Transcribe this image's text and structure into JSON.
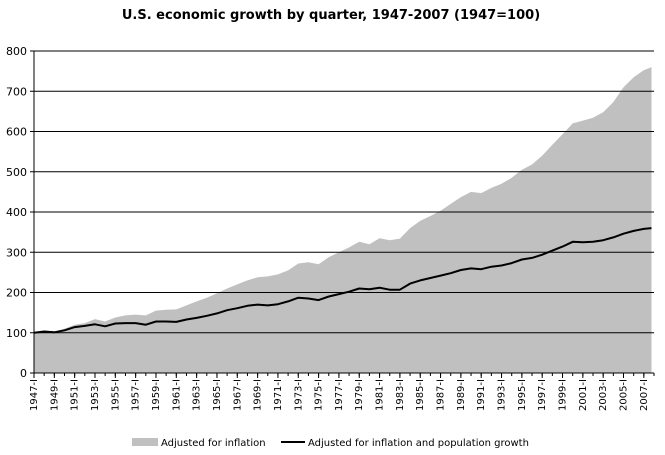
{
  "chart_data": {
    "type": "area",
    "title": "U.S. economic growth by quarter, 1947-2007 (1947=100)",
    "xlabel": "",
    "ylabel": "",
    "xlim": [
      1947,
      2008
    ],
    "ylim": [
      0,
      800
    ],
    "yticks": [
      0,
      100,
      200,
      300,
      400,
      500,
      600,
      700,
      800
    ],
    "xtick_labels": [
      "1947-I",
      "1949-I",
      "1951-I",
      "1953-I",
      "1955-I",
      "1957-I",
      "1959-I",
      "1961-I",
      "1963-I",
      "1965-I",
      "1967-I",
      "1969-I",
      "1971-I",
      "1973-I",
      "1975-I",
      "1977-I",
      "1979-I",
      "1981-I",
      "1983-I",
      "1985-I",
      "1987-I",
      "1989-I",
      "1991-I",
      "1993-I",
      "1995-I",
      "1997-I",
      "1999-I",
      "2001-I",
      "2003-I",
      "2005-I",
      "2007-I"
    ],
    "grid": "horizontal",
    "legend_position": "bottom",
    "series": [
      {
        "name": "Adjusted for inflation",
        "style": "area",
        "color": "#c0c0c0",
        "x": [
          1947,
          1948,
          1949,
          1950,
          1951,
          1952,
          1953,
          1954,
          1955,
          1956,
          1957,
          1958,
          1959,
          1960,
          1961,
          1962,
          1963,
          1964,
          1965,
          1966,
          1967,
          1968,
          1969,
          1970,
          1971,
          1972,
          1973,
          1974,
          1975,
          1976,
          1977,
          1978,
          1979,
          1980,
          1981,
          1982,
          1983,
          1984,
          1985,
          1986,
          1987,
          1988,
          1989,
          1990,
          1991,
          1992,
          1993,
          1994,
          1995,
          1996,
          1997,
          1998,
          1999,
          2000,
          2001,
          2002,
          2003,
          2004,
          2005,
          2006,
          2007,
          2007.75
        ],
        "values": [
          100,
          104,
          103,
          110,
          120,
          124,
          134,
          128,
          138,
          143,
          145,
          143,
          155,
          157,
          158,
          168,
          178,
          187,
          198,
          210,
          220,
          230,
          238,
          240,
          245,
          255,
          272,
          275,
          270,
          288,
          300,
          312,
          326,
          320,
          335,
          330,
          334,
          360,
          378,
          390,
          403,
          420,
          437,
          450,
          447,
          460,
          470,
          485,
          505,
          518,
          540,
          567,
          593,
          620,
          627,
          634,
          648,
          673,
          710,
          735,
          752,
          760
        ]
      },
      {
        "name": "Adjusted for inflation and population growth",
        "style": "line",
        "color": "#000000",
        "x": [
          1947,
          1948,
          1949,
          1950,
          1951,
          1952,
          1953,
          1954,
          1955,
          1956,
          1957,
          1958,
          1959,
          1960,
          1961,
          1962,
          1963,
          1964,
          1965,
          1966,
          1967,
          1968,
          1969,
          1970,
          1971,
          1972,
          1973,
          1974,
          1975,
          1976,
          1977,
          1978,
          1979,
          1980,
          1981,
          1982,
          1983,
          1984,
          1985,
          1986,
          1987,
          1988,
          1989,
          1990,
          1991,
          1992,
          1993,
          1994,
          1995,
          1996,
          1997,
          1998,
          1999,
          2000,
          2001,
          2002,
          2003,
          2004,
          2005,
          2006,
          2007,
          2007.75
        ],
        "values": [
          100,
          103,
          101,
          106,
          114,
          117,
          121,
          116,
          123,
          124,
          124,
          120,
          128,
          128,
          127,
          133,
          137,
          142,
          148,
          156,
          161,
          167,
          170,
          168,
          171,
          178,
          187,
          185,
          181,
          190,
          196,
          202,
          210,
          208,
          212,
          207,
          207,
          222,
          230,
          236,
          242,
          248,
          256,
          260,
          258,
          264,
          267,
          273,
          282,
          286,
          294,
          304,
          314,
          326,
          325,
          326,
          330,
          337,
          346,
          353,
          358,
          360
        ]
      }
    ]
  }
}
